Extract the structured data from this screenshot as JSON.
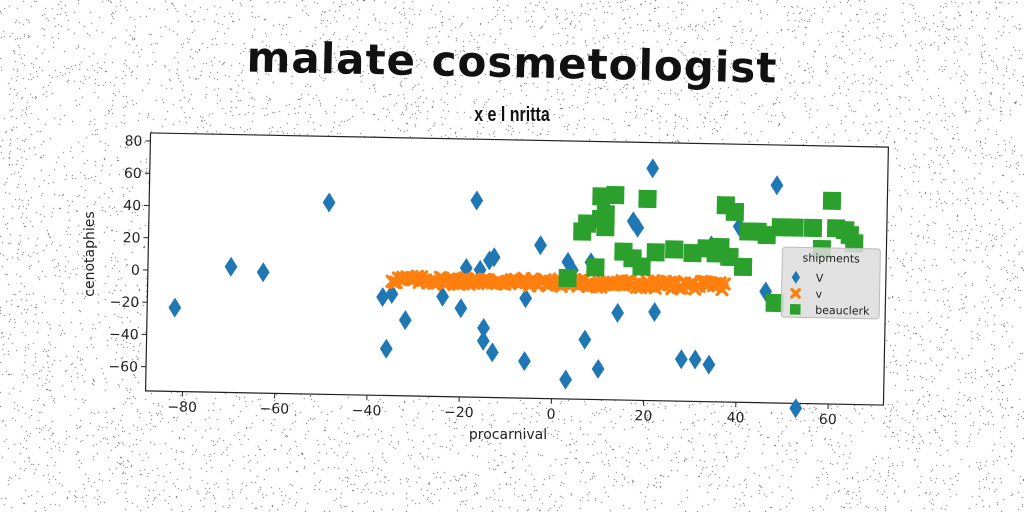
{
  "title": "malate cosmetologist",
  "subtitle": "x e l nritta",
  "chart_data": {
    "type": "scatter",
    "xlabel": "procarnival",
    "ylabel": "cenotaphies",
    "xlim": [
      -88,
      72
    ],
    "ylim": [
      -75,
      85
    ],
    "xticks": [
      -80,
      -60,
      -40,
      -20,
      0,
      20,
      40,
      60
    ],
    "yticks": [
      -60,
      -40,
      -20,
      0,
      20,
      40,
      60,
      80
    ],
    "grid": false,
    "legend": {
      "title": "shipments",
      "placement": "right"
    },
    "series": [
      {
        "name": "V",
        "marker": "diamond",
        "color": "#1f77b4",
        "points": [
          [
            -82,
            -23
          ],
          [
            -70,
            3
          ],
          [
            -63,
            0
          ],
          [
            -49,
            44
          ],
          [
            -37,
            -14
          ],
          [
            -36,
            -46
          ],
          [
            -35,
            -12
          ],
          [
            -32,
            -28
          ],
          [
            -24,
            -13
          ],
          [
            -20,
            -20
          ],
          [
            -19,
            5
          ],
          [
            -17,
            47
          ],
          [
            -16,
            4
          ],
          [
            -15,
            -32
          ],
          [
            -15,
            -40
          ],
          [
            -14,
            10
          ],
          [
            -13,
            -47
          ],
          [
            -13,
            12
          ],
          [
            -6,
            -52
          ],
          [
            -6,
            -13
          ],
          [
            -3,
            20
          ],
          [
            3,
            -63
          ],
          [
            3,
            10
          ],
          [
            4,
            5
          ],
          [
            7,
            -38
          ],
          [
            8,
            10
          ],
          [
            10,
            -56
          ],
          [
            14,
            -21
          ],
          [
            17,
            36
          ],
          [
            18,
            32
          ],
          [
            21,
            69
          ],
          [
            22,
            -20
          ],
          [
            28,
            -49
          ],
          [
            31,
            -49
          ],
          [
            34,
            -52
          ],
          [
            34,
            22
          ],
          [
            40,
            34
          ],
          [
            46,
            -6
          ],
          [
            48,
            60
          ],
          [
            53,
            -78
          ]
        ]
      },
      {
        "name": "v",
        "marker": "x",
        "color": "#ff7f0e",
        "x_range": [
          -35,
          37
        ],
        "y_center": -3
      },
      {
        "name": "beauclerk",
        "marker": "square",
        "color": "#2ca02c",
        "points": [
          [
            3,
            0
          ],
          [
            6,
            29
          ],
          [
            7,
            34
          ],
          [
            9,
            7
          ],
          [
            10,
            51
          ],
          [
            10,
            37
          ],
          [
            11,
            40
          ],
          [
            11,
            32
          ],
          [
            13,
            52
          ],
          [
            15,
            17
          ],
          [
            17,
            13
          ],
          [
            19,
            8
          ],
          [
            20,
            50
          ],
          [
            22,
            17
          ],
          [
            26,
            19
          ],
          [
            30,
            17
          ],
          [
            33,
            20
          ],
          [
            35,
            17
          ],
          [
            36,
            21
          ],
          [
            37,
            47
          ],
          [
            38,
            15
          ],
          [
            39,
            43
          ],
          [
            41,
            9
          ],
          [
            42,
            31
          ],
          [
            44,
            31
          ],
          [
            46,
            29
          ],
          [
            48,
            -13
          ],
          [
            49,
            34
          ],
          [
            52,
            34
          ],
          [
            56,
            34
          ],
          [
            58,
            21
          ],
          [
            60,
            51
          ],
          [
            61,
            34
          ],
          [
            63,
            33
          ],
          [
            64,
            30
          ],
          [
            65,
            25
          ]
        ]
      }
    ]
  }
}
